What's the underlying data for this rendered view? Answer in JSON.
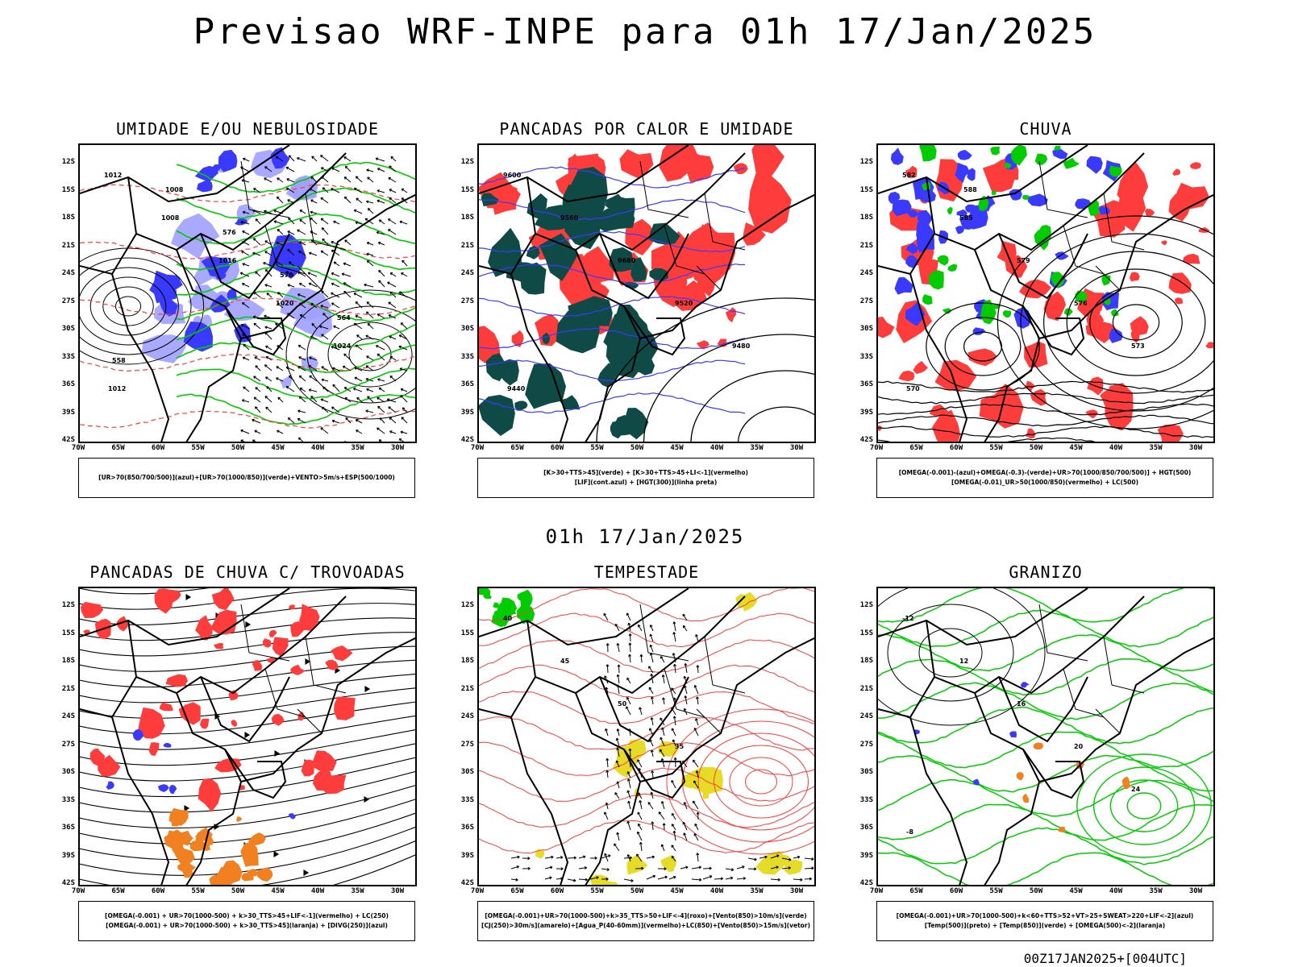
{
  "title": "Previsao WRF-INPE  para 01h 17/Jan/2025",
  "mid_timestamp": "01h 17/Jan/2025",
  "footer_stamp": "00Z17JAN2025+[004UTC]",
  "axes": {
    "latitude_ticks": [
      "12S",
      "15S",
      "18S",
      "21S",
      "24S",
      "27S",
      "30S",
      "33S",
      "36S",
      "39S",
      "42S"
    ],
    "longitude_ticks": [
      "70W",
      "65W",
      "60W",
      "55W",
      "50W",
      "45W",
      "40W",
      "35W",
      "30W"
    ]
  },
  "colors": {
    "blue": "#3a3aff",
    "light_blue": "#a0a0ff",
    "green": "#00cc00",
    "red": "#ff3c3c",
    "dark_teal": "#0f4a46",
    "orange": "#f08020",
    "yellow": "#e6dc28",
    "purple": "#c060e0"
  },
  "panels": [
    {
      "id": "umidade",
      "title": "UMIDADE E/OU NEBULOSIDADE",
      "legend": [
        "[UR>70(850/700/500)](azul)+[UR>70(1000/850)](verde)+VENTO>5m/s+ESP(500/1000)"
      ],
      "contour_labels": [
        "1012",
        "1008",
        "1016",
        "1020",
        "1024",
        "1012",
        "1008",
        "576",
        "570",
        "564",
        "558"
      ]
    },
    {
      "id": "pancadas-calor",
      "title": "PANCADAS POR CALOR E UMIDADE",
      "legend": [
        "[K>30+TTS>45](verde) + [K>30+TTS>45+LI<-1](vermelho)",
        "[LIF](cont.azul) + [HGT(300)](linha preta)"
      ],
      "contour_labels": [
        "9600",
        "9560",
        "9680",
        "9520",
        "9480",
        "9440"
      ]
    },
    {
      "id": "chuva",
      "title": "CHUVA",
      "legend": [
        "[OMEGA(-0.001)-(azul)+OMEGA(-0.3)-(verde)+UR>70(1000/850/700/500)] + HGT(500)",
        "[OMEGA(-0.01)_UR>50(1000/850)(vermelho) + LC(500)"
      ],
      "contour_labels": [
        "582",
        "585",
        "579",
        "576",
        "573",
        "570",
        "588"
      ]
    },
    {
      "id": "pancadas-trovoadas",
      "title": "PANCADAS DE CHUVA C/ TROVOADAS",
      "legend": [
        "[OMEGA(-0.001) + UR>70(1000-500) + k>30_TTS>45+LIF<-1](vermelho) + LC(250)",
        "[OMEGA(-0.001) + UR>70(1000-500) + k>30_TTS>45](laranja) + [DIVG(250)](azul)"
      ],
      "contour_labels": []
    },
    {
      "id": "tempestade",
      "title": "TEMPESTADE",
      "legend": [
        "[OMEGA(-0.001)+UR>70(1000-500)+k>35_TTS>50+LIF<-4](roxo)+[Vento(850)>10m/s](verde)",
        "[CJ(250)>30m/s](amarelo)+[Agua_P(40-60mm)](vermelho)+LC(850)+[Vento(850)>15m/s](vetor)"
      ],
      "contour_labels": [
        "40",
        "45",
        "50",
        "35"
      ]
    },
    {
      "id": "granizo",
      "title": "GRANIZO",
      "legend": [
        "[OMEGA(-0.001)+UR>70(1000-500)+k<60+TTS>52+VT>25+SWEAT>220+LIF<-2](azul)",
        "[Temp(500)](preto) + [Temp(850)](verde) + [OMEGA(500)<-2](laranja)"
      ],
      "contour_labels": [
        "-12",
        "12",
        "16",
        "20",
        "24",
        "-8"
      ]
    }
  ]
}
